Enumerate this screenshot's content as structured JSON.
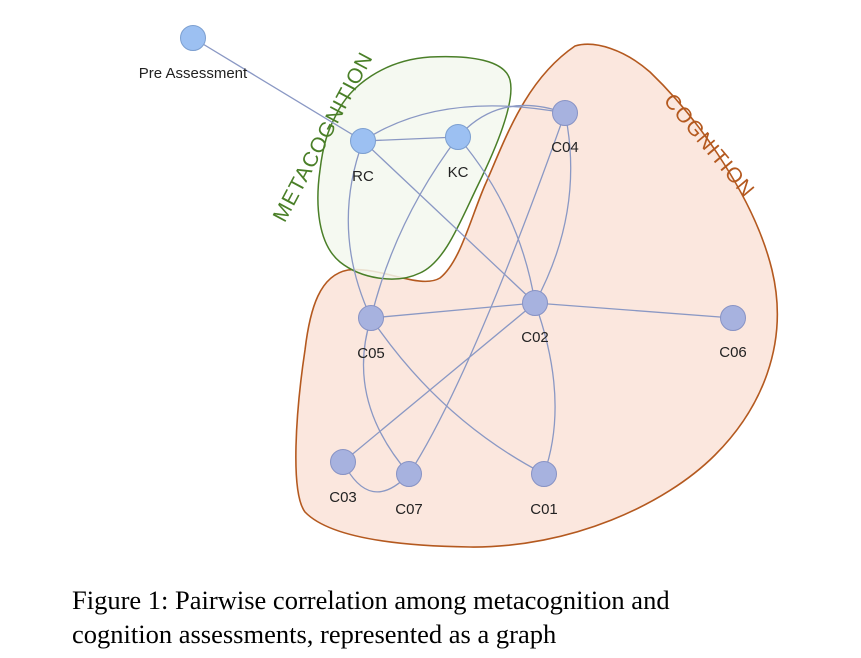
{
  "regions": {
    "metacognition": {
      "label": "METACOGNITION",
      "fill": "#f3f8ef",
      "stroke": "#4a7f28",
      "text_color": "#4a7f28"
    },
    "cognition": {
      "label": "COGNITION",
      "fill": "#fbe7de",
      "stroke": "#b4591f",
      "text_color": "#b4591f"
    }
  },
  "node_style": {
    "meta_fill": "#9cc0f2",
    "meta_stroke": "#7c9fd0",
    "cog_fill": "#a7b2df",
    "cog_stroke": "#8893c4",
    "edge_color": "#8a98c4"
  },
  "nodes": {
    "pre": {
      "label": "Pre Assessment"
    },
    "rc": {
      "label": "RC"
    },
    "kc": {
      "label": "KC"
    },
    "c04": {
      "label": "C04"
    },
    "c02": {
      "label": "C02"
    },
    "c05": {
      "label": "C05"
    },
    "c06": {
      "label": "C06"
    },
    "c03": {
      "label": "C03"
    },
    "c07": {
      "label": "C07"
    },
    "c01": {
      "label": "C01"
    }
  },
  "edges": [
    [
      "pre",
      "rc"
    ],
    [
      "rc",
      "kc"
    ],
    [
      "rc",
      "c04"
    ],
    [
      "rc",
      "c02"
    ],
    [
      "rc",
      "c05"
    ],
    [
      "kc",
      "c04"
    ],
    [
      "kc",
      "c02"
    ],
    [
      "kc",
      "c05"
    ],
    [
      "c04",
      "c02"
    ],
    [
      "c05",
      "c02"
    ],
    [
      "c02",
      "c06"
    ],
    [
      "c02",
      "c01"
    ],
    [
      "c02",
      "c03"
    ],
    [
      "c05",
      "c01"
    ],
    [
      "c05",
      "c07"
    ],
    [
      "c03",
      "c07"
    ],
    [
      "c07",
      "c04"
    ]
  ],
  "caption": {
    "line1": "Figure 1: Pairwise correlation among metacognition and",
    "line2": "cognition assessments, represented as a graph"
  }
}
